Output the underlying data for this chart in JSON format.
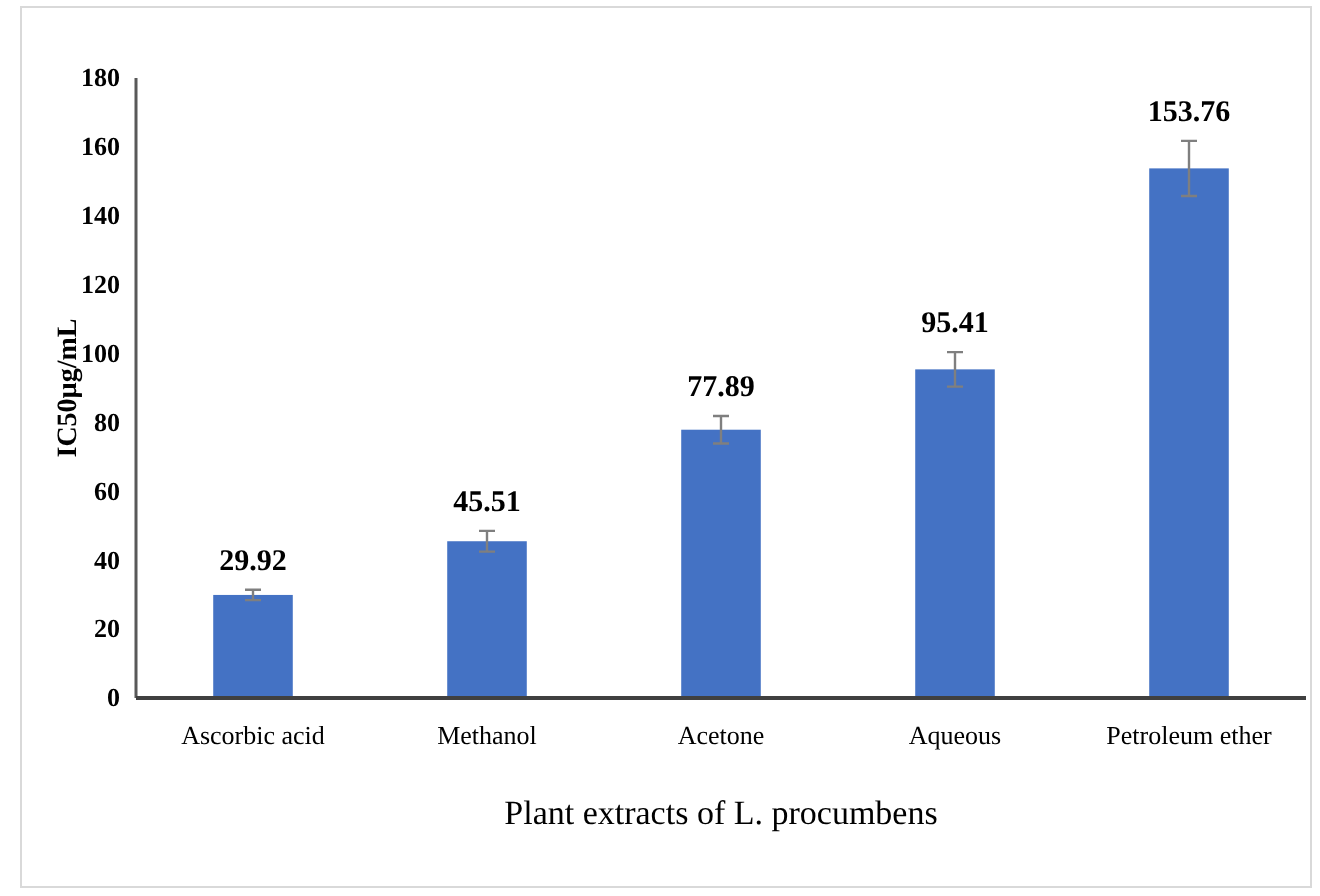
{
  "chart_data": {
    "type": "bar",
    "xlabel": "Plant extracts of L. procumbens",
    "ylabel": "IC50µg/mL",
    "categories": [
      "Ascorbic acid",
      "Methanol",
      "Acetone",
      "Aqueous",
      "Petroleum ether"
    ],
    "values": [
      29.92,
      45.51,
      77.89,
      95.41,
      153.76
    ],
    "errors": [
      1.5,
      3,
      4,
      5,
      8
    ],
    "color": "#4472c4",
    "ylim": [
      0,
      180
    ],
    "yticks": [
      0,
      20,
      40,
      60,
      80,
      100,
      120,
      140,
      160,
      180
    ],
    "data_labels": true,
    "grid": false
  }
}
